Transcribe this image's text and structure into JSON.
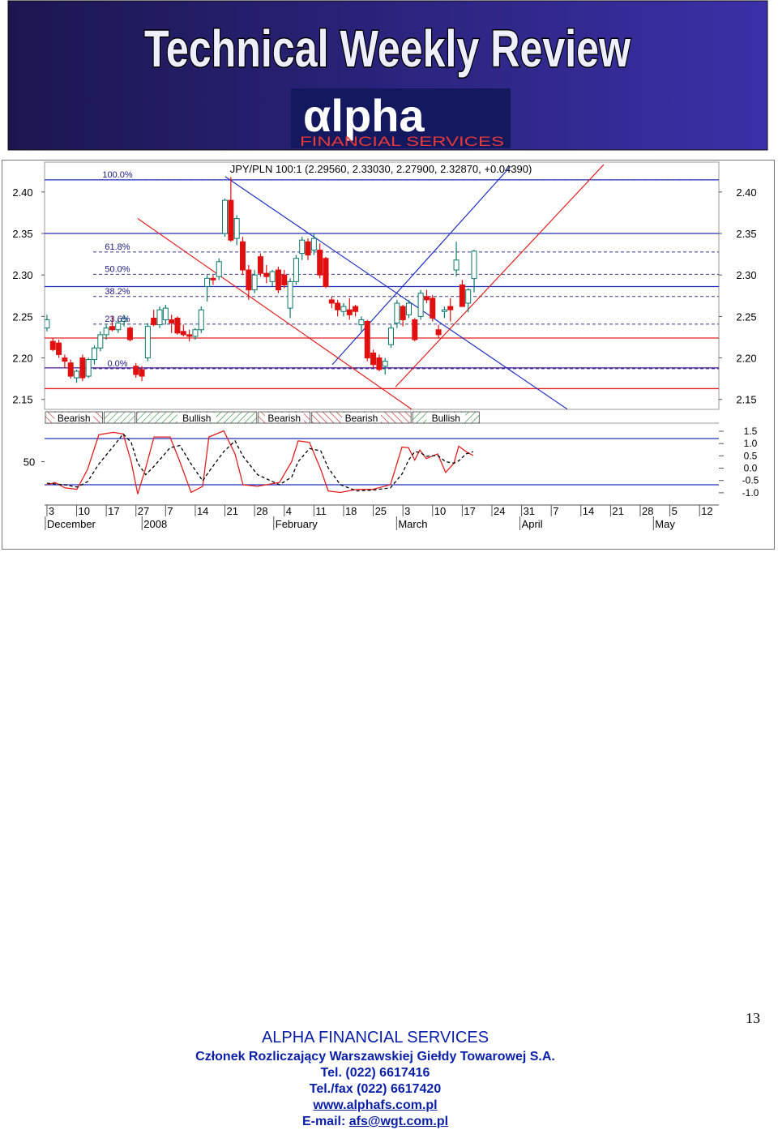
{
  "header": {
    "title": "Technical Weekly Review",
    "logo_name": "αlpha",
    "logo_tagline": "FINANCIAL SERVICES"
  },
  "chart_data": {
    "type": "candlestick",
    "title": "JPY/PLN 100:1 (2.29560, 2.33030, 2.27900, 2.32870, +0.04390)",
    "x": [
      0,
      0.2,
      0.4,
      0.6,
      0.8,
      1,
      1.2,
      1.4,
      1.6,
      1.8,
      2,
      2.2,
      2.4,
      2.6,
      2.8,
      3,
      3.2,
      3.4,
      3.6,
      3.8,
      4,
      4.2,
      4.4,
      4.6,
      4.8,
      5,
      5.2,
      5.4,
      5.6,
      5.8,
      6,
      6.2,
      6.4,
      6.6,
      6.8,
      7,
      7.2,
      7.4,
      7.6,
      7.8,
      8,
      8.2,
      8.4,
      8.6,
      8.8,
      9,
      9.2,
      9.4,
      9.6,
      9.8,
      10,
      10.2,
      10.4,
      10.6,
      10.8,
      11,
      11.2,
      11.4,
      11.6,
      11.8,
      12,
      12.2,
      12.4,
      12.6,
      12.8,
      13,
      13.2,
      13.4,
      13.6,
      13.8,
      14,
      14.2,
      14.4
    ],
    "open": [
      2.236,
      2.22,
      2.218,
      2.2,
      2.194,
      2.176,
      2.2,
      2.178,
      2.198,
      2.212,
      2.228,
      2.238,
      2.234,
      2.244,
      2.236,
      2.19,
      2.186,
      2.2,
      2.248,
      2.24,
      2.246,
      2.246,
      2.248,
      2.232,
      2.228,
      2.226,
      2.234,
      2.286,
      2.296,
      2.298,
      2.35,
      2.39,
      2.344,
      2.34,
      2.306,
      2.282,
      2.322,
      2.302,
      2.292,
      2.306,
      2.3,
      2.26,
      2.292,
      2.326,
      2.34,
      2.33,
      2.33,
      2.32,
      2.27,
      2.266,
      2.256,
      2.258,
      2.262,
      2.24,
      2.244,
      2.206,
      2.2,
      2.19,
      2.216,
      2.242,
      2.262,
      2.252,
      2.246,
      2.25,
      2.274,
      2.272,
      2.234,
      2.256,
      2.262,
      2.306,
      2.288,
      2.266,
      2.2956
    ],
    "high": [
      2.252,
      2.224,
      2.222,
      2.204,
      2.198,
      2.186,
      2.204,
      2.2,
      2.215,
      2.232,
      2.24,
      2.25,
      2.246,
      2.252,
      2.238,
      2.194,
      2.19,
      2.242,
      2.258,
      2.262,
      2.264,
      2.252,
      2.25,
      2.24,
      2.234,
      2.236,
      2.262,
      2.3,
      2.3,
      2.32,
      2.392,
      2.418,
      2.372,
      2.346,
      2.312,
      2.306,
      2.326,
      2.312,
      2.306,
      2.31,
      2.306,
      2.296,
      2.324,
      2.346,
      2.344,
      2.35,
      2.338,
      2.322,
      2.274,
      2.27,
      2.266,
      2.272,
      2.264,
      2.25,
      2.246,
      2.21,
      2.204,
      2.2,
      2.24,
      2.27,
      2.264,
      2.27,
      2.248,
      2.282,
      2.282,
      2.276,
      2.24,
      2.262,
      2.272,
      2.34,
      2.294,
      2.284,
      2.3303
    ],
    "low": [
      2.232,
      2.208,
      2.2,
      2.188,
      2.175,
      2.17,
      2.172,
      2.176,
      2.192,
      2.208,
      2.222,
      2.232,
      2.23,
      2.238,
      2.22,
      2.176,
      2.172,
      2.196,
      2.238,
      2.236,
      2.24,
      2.23,
      2.228,
      2.226,
      2.22,
      2.222,
      2.23,
      2.268,
      2.288,
      2.294,
      2.346,
      2.34,
      2.336,
      2.3,
      2.27,
      2.278,
      2.298,
      2.29,
      2.286,
      2.278,
      2.284,
      2.248,
      2.288,
      2.318,
      2.318,
      2.324,
      2.296,
      2.284,
      2.26,
      2.25,
      2.25,
      2.246,
      2.25,
      2.232,
      2.196,
      2.188,
      2.184,
      2.18,
      2.212,
      2.236,
      2.238,
      2.248,
      2.22,
      2.246,
      2.266,
      2.244,
      2.224,
      2.248,
      2.244,
      2.298,
      2.262,
      2.255,
      2.279
    ],
    "close": [
      2.246,
      2.21,
      2.204,
      2.196,
      2.178,
      2.184,
      2.176,
      2.198,
      2.212,
      2.228,
      2.236,
      2.234,
      2.242,
      2.248,
      2.222,
      2.18,
      2.178,
      2.238,
      2.24,
      2.258,
      2.26,
      2.242,
      2.23,
      2.228,
      2.226,
      2.234,
      2.258,
      2.296,
      2.294,
      2.316,
      2.39,
      2.342,
      2.368,
      2.306,
      2.282,
      2.3,
      2.302,
      2.298,
      2.304,
      2.282,
      2.288,
      2.292,
      2.32,
      2.342,
      2.324,
      2.344,
      2.3,
      2.286,
      2.266,
      2.258,
      2.262,
      2.252,
      2.256,
      2.246,
      2.2,
      2.192,
      2.186,
      2.196,
      2.236,
      2.266,
      2.246,
      2.266,
      2.222,
      2.278,
      2.27,
      2.248,
      2.228,
      2.258,
      2.258,
      2.318,
      2.262,
      2.282,
      2.3287
    ],
    "up_color": "#0a7a6a",
    "down_color": "#e01010",
    "xlim": [
      -0.08,
      22.65
    ],
    "ylim": [
      2.138,
      2.436
    ],
    "yticks": [
      2.15,
      {
        "value": 2.2,
        "label": "2.20"
      },
      2.25,
      {
        "value": 2.3,
        "label": "2.30"
      },
      2.35,
      {
        "value": 2.4,
        "label": "2.40"
      }
    ],
    "xticks": [
      {
        "value": 0,
        "label": "3"
      },
      {
        "value": 1,
        "label": "10"
      },
      {
        "value": 2,
        "label": "17"
      },
      {
        "value": 3,
        "label": "27"
      },
      {
        "value": 4,
        "label": "7"
      },
      {
        "value": 5,
        "label": "14"
      },
      {
        "value": 6,
        "label": "21"
      },
      {
        "value": 7,
        "label": "28"
      },
      {
        "value": 8,
        "label": "4"
      },
      {
        "value": 9,
        "label": "11"
      },
      {
        "value": 10,
        "label": "18"
      },
      {
        "value": 11,
        "label": "25"
      },
      {
        "value": 12,
        "label": "3"
      },
      {
        "value": 13,
        "label": "10"
      },
      {
        "value": 14,
        "label": "17"
      },
      {
        "value": 15,
        "label": "24"
      },
      {
        "value": 16,
        "label": "31"
      },
      {
        "value": 17,
        "label": "7"
      },
      {
        "value": 18,
        "label": "14"
      },
      {
        "value": 19,
        "label": "21"
      },
      {
        "value": 20,
        "label": "28"
      },
      {
        "value": 21,
        "label": "5"
      },
      {
        "value": 22,
        "label": "12"
      }
    ],
    "xmonths": [
      {
        "value": 0,
        "label": "December"
      },
      {
        "value": 3.26,
        "label": "2008"
      },
      {
        "value": 7.7,
        "label": "February"
      },
      {
        "value": 11.84,
        "label": "March"
      },
      {
        "value": 16,
        "label": "April"
      },
      {
        "value": 20.5,
        "label": "May"
      }
    ],
    "levels": [
      {
        "value": 2.4146,
        "color": "#2030c0"
      },
      {
        "value": 2.35,
        "color": "#2030c0"
      },
      {
        "value": 2.286,
        "color": "#2030c0"
      },
      {
        "value": 2.224,
        "color": "#e02020"
      },
      {
        "value": 2.188,
        "color": "#5a2aa0"
      },
      {
        "value": 2.163,
        "color": "#e02020"
      }
    ],
    "fib_levels": [
      {
        "value": 2.4146,
        "label": "100.0%"
      },
      {
        "value": 2.3277,
        "label": "61.8%"
      },
      {
        "value": 2.3008,
        "label": "50.0%"
      },
      {
        "value": 2.274,
        "label": "38.2%"
      },
      {
        "value": 2.2407,
        "label": "23.6%"
      },
      {
        "value": 2.187,
        "label": "0.0%"
      }
    ],
    "trendlines": [
      {
        "x": [
          6.01,
          17.54
        ],
        "y": [
          2.4185,
          2.1383
        ],
        "color": "#2030c0"
      },
      {
        "x": [
          9.62,
          15.63
        ],
        "y": [
          2.192,
          2.431
        ],
        "color": "#2030c0"
      },
      {
        "x": [
          3.06,
          12.3
        ],
        "y": [
          2.368,
          2.138
        ],
        "color": "#e02020"
      },
      {
        "x": [
          11.75,
          18.77
        ],
        "y": [
          2.165,
          2.433
        ],
        "color": "#e02020"
      }
    ],
    "zones": [
      {
        "label": "Bearish",
        "x": [
          -0.08,
          1.9
        ]
      },
      {
        "label": null,
        "x": [
          1.9,
          3.0
        ]
      },
      {
        "label": "Bullish",
        "x": [
          3.0,
          7.1
        ]
      },
      {
        "label": "Bearish",
        "x": [
          7.1,
          8.9
        ]
      },
      {
        "label": "Bearish",
        "x": [
          8.9,
          12.3
        ]
      },
      {
        "label": "Bullish",
        "x": [
          12.3,
          14.6
        ]
      }
    ],
    "oscillator": {
      "type": "line",
      "x": [
        0,
        0.27,
        0.6,
        1.01,
        1.37,
        1.75,
        2.24,
        2.57,
        2.84,
        3.06,
        3.33,
        3.61,
        4.15,
        4.48,
        4.86,
        5.25,
        5.46,
        5.96,
        6.34,
        6.61,
        7.1,
        7.84,
        8.25,
        8.47,
        8.85,
        9.23,
        9.48,
        9.89,
        10.44,
        10.98,
        11.58,
        11.97,
        12.19,
        12.4,
        12.57,
        12.79,
        13.17,
        13.44,
        13.72,
        13.88,
        14.13,
        14.37
      ],
      "series": [
        {
          "color": "#e02020",
          "style": "solid",
          "values": [
            20,
            23,
            16,
            14,
            40,
            85,
            88,
            86,
            50,
            8,
            42,
            82,
            82,
            50,
            10,
            18,
            82,
            90,
            60,
            20,
            18,
            23,
            50,
            77,
            75,
            40,
            12,
            10,
            14,
            14,
            20,
            69,
            68,
            52,
            65,
            54,
            60,
            36,
            48,
            70,
            63,
            58
          ]
        },
        {
          "color": "#000000",
          "style": "dashed",
          "values": [
            22,
            21,
            20,
            17,
            24,
            47,
            70,
            86,
            75,
            48,
            33,
            44,
            68,
            71,
            47,
            25,
            37,
            63,
            77,
            57,
            33,
            20,
            30,
            50,
            67,
            64,
            42,
            20,
            12,
            13,
            16,
            34,
            52,
            63,
            62,
            57,
            58,
            50,
            48,
            51,
            60,
            63
          ]
        }
      ],
      "ylim": [
        0,
        100
      ],
      "yticks": [
        50
      ],
      "levels": [
        80,
        20
      ],
      "y2lim": [
        -1.3,
        1.83
      ],
      "y2ticks": [
        1.5,
        {
          "value": 1,
          "label": "1.0"
        },
        0.5,
        {
          "value": 0,
          "label": "0.0"
        },
        -0.5,
        {
          "value": -1,
          "label": "-1.0"
        }
      ]
    }
  },
  "footer": {
    "company": "ALPHA FINANCIAL SERVICES",
    "member": "Członek Rozliczający Warszawskiej Giełdy Towarowej S.A.",
    "tel": "Tel. (022) 6617416",
    "fax": "Tel./fax (022) 6617420",
    "web": "www.alphafs.com.pl",
    "email_label": "E-mail:",
    "email": "afs@wgt.com.pl",
    "page": "13"
  }
}
